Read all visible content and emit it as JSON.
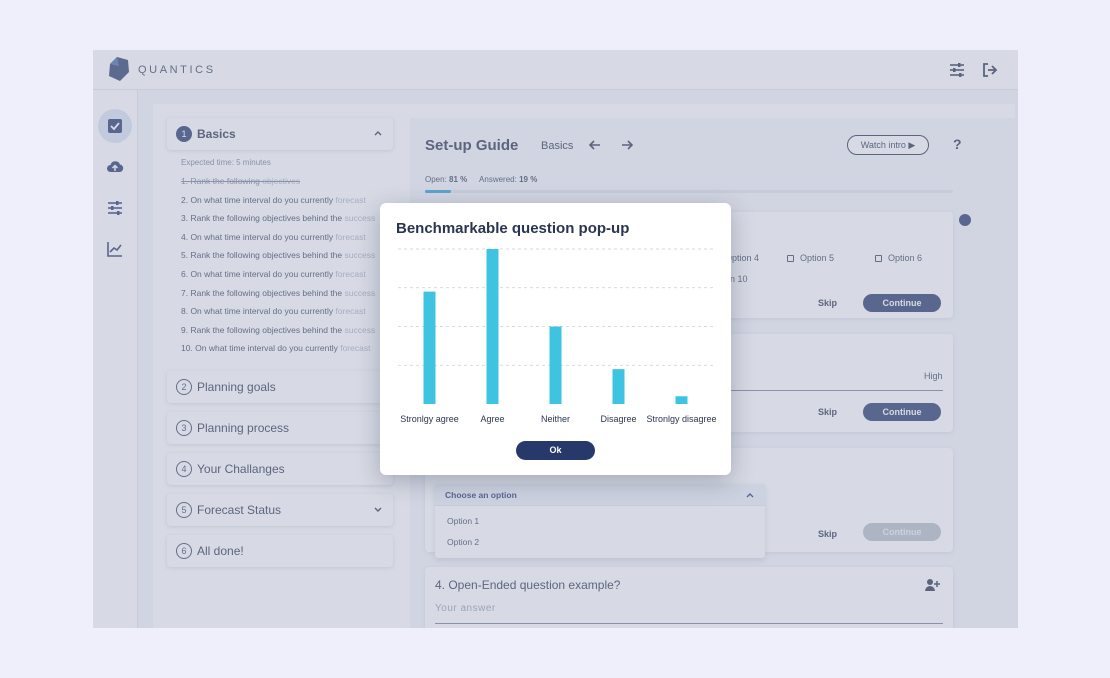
{
  "app": {
    "brand": "QUANTICS",
    "icons": [
      "settings-sliders-icon",
      "logout-icon"
    ]
  },
  "sidebar": {
    "items": [
      "checklist-icon",
      "upload-cloud-icon",
      "sliders-icon",
      "trend-chart-icon"
    ]
  },
  "steps": {
    "basics": {
      "num": "1",
      "title": "Basics",
      "expected": "Expected time: 5 minutes"
    },
    "questions": [
      {
        "main": "1. Rank the following",
        "faded": " objectives"
      },
      {
        "main": "2. On what time interval do you currently",
        "faded": " forecast"
      },
      {
        "main": "3. Rank the following objectives behind the",
        "faded": " success"
      },
      {
        "main": "4. On what time interval do you currently",
        "faded": " forecast"
      },
      {
        "main": "5. Rank the following objectives behind the",
        "faded": " success"
      },
      {
        "main": "6. On what time interval do you currently",
        "faded": " forecast"
      },
      {
        "main": "7. Rank the following objectives behind the",
        "faded": " success"
      },
      {
        "main": "8. On what time interval do you currently",
        "faded": " forecast"
      },
      {
        "main": "9. Rank the following objectives behind the",
        "faded": " success"
      },
      {
        "main": "10. On what time interval do you currently",
        "faded": " forecast"
      }
    ],
    "others": [
      {
        "num": "2",
        "title": "Planning goals"
      },
      {
        "num": "3",
        "title": "Planning process"
      },
      {
        "num": "4",
        "title": "Your Challanges"
      },
      {
        "num": "5",
        "title": "Forecast Status"
      },
      {
        "num": "6",
        "title": "All done!"
      }
    ]
  },
  "guide": {
    "title": "Set-up Guide",
    "section": "Basics",
    "watch_intro": "Watch intro",
    "help": "?",
    "open_label": "Open:",
    "open_value": "81 %",
    "answered_label": "Answered:",
    "answered_value": "19 %",
    "progress": 0.05,
    "card1": {
      "opt4": "Option 4",
      "opt5": "Option 5",
      "opt6": "Option 6",
      "opt10": "on 10",
      "skip": "Skip",
      "continue": "Continue"
    },
    "card2": {
      "high": "High",
      "skip": "Skip",
      "continue": "Continue"
    },
    "card3": {
      "dropdown_label": "Choose an option",
      "option1": "Option 1",
      "option2": "Option 2",
      "skip": "Skip",
      "continue": "Continue"
    },
    "card4": {
      "title": "4. Open-Ended question example?",
      "placeholder": "Your answer"
    }
  },
  "modal": {
    "title": "Benchmarkable question pop-up",
    "ok": "Ok"
  },
  "chart_data": {
    "type": "bar",
    "title": "",
    "categories": [
      "Stronlgy agree",
      "Agree",
      "Neither",
      "Disagree",
      "Stronlgy disagree"
    ],
    "values": [
      58,
      80,
      40,
      18,
      4
    ],
    "ylim": [
      0,
      80
    ],
    "grid": true,
    "bar_color": "#3ec3e0"
  }
}
